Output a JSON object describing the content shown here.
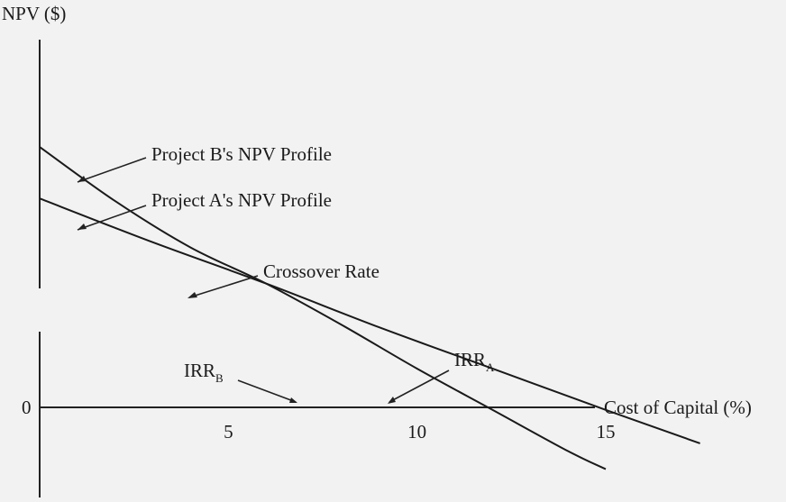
{
  "chart_data": {
    "type": "line",
    "ylabel": "NPV ($)",
    "xlabel": "Cost of Capital (%)",
    "zero_label": "0",
    "x_ticks": [
      5,
      10,
      15
    ],
    "xlim": [
      0,
      19.3
    ],
    "ylim": [
      -3.4,
      15.9
    ],
    "grid": false,
    "series": [
      {
        "key": "projectB",
        "x": [
          0,
          2,
          4,
          6,
          8,
          10,
          12,
          14,
          15
        ],
        "y": [
          10.2,
          8.1,
          6.3,
          4.9,
          3.3,
          1.6,
          0,
          -1.6,
          -2.3
        ]
      },
      {
        "key": "projectA",
        "x": [
          0,
          3,
          6,
          9,
          12,
          15,
          17.5
        ],
        "y": [
          8.2,
          6.5,
          4.9,
          3.2,
          1.6,
          0,
          -1.3
        ]
      }
    ],
    "annotations": {
      "project_b": "Project B's NPV Profile",
      "project_a": "Project A's NPV Profile",
      "crossover": "Crossover Rate",
      "irr_b_main": "IRR",
      "irr_b_sub": "B",
      "irr_a_main": "IRR",
      "irr_a_sub": "A"
    }
  }
}
